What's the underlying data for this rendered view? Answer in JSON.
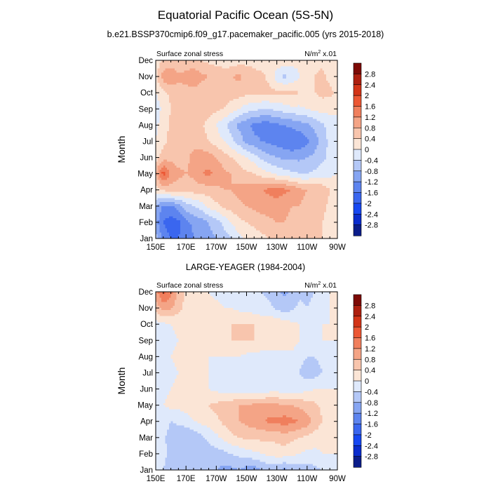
{
  "figure": {
    "title": "Equatorial Pacific Ocean (5S-5N)",
    "subtitle": "b.e21.BSSP370cmip6.f09_g17.pacemaker_pacific.005 (yrs 2015-2018)",
    "second_title": "LARGE-YEAGER (1984-2004)"
  },
  "colors": {
    "levels": [
      -2.8,
      -2.4,
      -2.0,
      -1.6,
      -1.2,
      -0.8,
      -0.4,
      0,
      0.4,
      0.8,
      1.2,
      1.6,
      2.0,
      2.4,
      2.8
    ],
    "palette": [
      "#0b1d8a",
      "#0a2ccd",
      "#1647f2",
      "#3a66ef",
      "#5d84ef",
      "#86a5f2",
      "#b4c8f7",
      "#dfe9fb",
      "#fbe5d6",
      "#f8c5ad",
      "#f4a486",
      "#f07f5d",
      "#ec5734",
      "#d33417",
      "#ad1f0f",
      "#7d0a05"
    ]
  },
  "chart_data": [
    {
      "type": "heatmap",
      "name": "top-panel",
      "left_label": "Surface zonal stress",
      "right_label_base": "N/m",
      "right_label_sup": "2",
      "right_label_tail": " x.01",
      "ylabel": "Month",
      "x_ticks": [
        "150E",
        "170E",
        "170W",
        "150W",
        "130W",
        "110W",
        "90W"
      ],
      "x_tick_values": [
        150,
        170,
        190,
        210,
        230,
        250,
        270
      ],
      "y_ticks": [
        "Jan",
        "Feb",
        "Mar",
        "Apr",
        "May",
        "Jun",
        "Jul",
        "Aug",
        "Sep",
        "Oct",
        "Nov",
        "Dec"
      ],
      "colorbar_labels": [
        "2.8",
        "2.4",
        "2",
        "1.6",
        "1.2",
        "0.8",
        "0.4",
        "0",
        "-0.4",
        "-0.8",
        "-1.2",
        "-1.6",
        "-2",
        "-2.4",
        "-2.8"
      ],
      "xlim": [
        150,
        270
      ],
      "ylim": [
        1,
        12
      ],
      "x": [
        150,
        155,
        160,
        165,
        170,
        175,
        180,
        185,
        190,
        195,
        200,
        205,
        210,
        215,
        220,
        225,
        230,
        235,
        240,
        245,
        250,
        255,
        260,
        265,
        270
      ],
      "months": [
        1,
        2,
        3,
        4,
        5,
        6,
        7,
        8,
        9,
        10,
        11,
        12
      ],
      "z": [
        [
          -0.6,
          -1.4,
          -1.6,
          -1.6,
          -1.5,
          -1.2,
          -1.0,
          -0.9,
          -0.8,
          -0.6,
          -0.4,
          -0.1,
          0.1,
          0.2,
          0.3,
          0.4,
          0.4,
          0.5,
          0.6,
          0.6,
          0.6,
          0.5,
          0.4,
          0.2,
          0.0
        ],
        [
          -1.0,
          -1.6,
          -1.8,
          -1.7,
          -1.3,
          -1.1,
          -1.0,
          -0.8,
          -0.6,
          -0.3,
          0.0,
          0.3,
          0.4,
          0.5,
          0.6,
          0.7,
          0.8,
          0.8,
          0.7,
          0.7,
          0.6,
          0.5,
          0.4,
          0.3,
          0.1
        ],
        [
          -0.8,
          -1.3,
          -1.3,
          -1.0,
          -0.6,
          -0.4,
          -0.2,
          0.1,
          0.3,
          0.5,
          0.6,
          0.7,
          0.8,
          0.9,
          1.0,
          1.0,
          1.0,
          0.9,
          0.8,
          0.8,
          0.7,
          0.6,
          0.5,
          0.3,
          0.1
        ],
        [
          0.2,
          0.5,
          0.6,
          0.6,
          0.5,
          0.6,
          0.6,
          0.6,
          0.7,
          0.8,
          0.8,
          0.9,
          1.0,
          1.1,
          1.2,
          1.3,
          1.4,
          1.3,
          1.2,
          0.9,
          0.8,
          0.8,
          0.7,
          0.4,
          0.2
        ],
        [
          0.8,
          1.8,
          1.1,
          0.9,
          0.8,
          0.9,
          1.2,
          1.3,
          1.1,
          0.9,
          0.8,
          0.6,
          0.5,
          0.4,
          0.2,
          0.1,
          -0.1,
          -0.2,
          -0.3,
          -0.4,
          -0.4,
          -0.3,
          -0.2,
          -0.1,
          0.0
        ],
        [
          0.2,
          0.6,
          0.7,
          0.6,
          0.7,
          0.9,
          1.0,
          1.0,
          0.8,
          0.6,
          0.4,
          0.2,
          0.0,
          -0.2,
          -0.5,
          -0.7,
          -0.8,
          -0.9,
          -0.9,
          -0.9,
          -0.8,
          -0.7,
          -0.5,
          -0.3,
          0.0
        ],
        [
          0.0,
          0.3,
          0.5,
          0.6,
          0.7,
          0.7,
          0.6,
          0.4,
          0.2,
          0.0,
          -0.3,
          -0.6,
          -0.9,
          -1.1,
          -1.2,
          -1.3,
          -1.4,
          -1.5,
          -1.6,
          -1.5,
          -1.3,
          -1.0,
          -0.6,
          -0.3,
          0.0
        ],
        [
          -0.1,
          0.2,
          0.5,
          0.6,
          0.6,
          0.6,
          0.5,
          0.2,
          0.0,
          -0.3,
          -0.6,
          -0.9,
          -1.1,
          -1.3,
          -1.4,
          -1.4,
          -1.3,
          -1.2,
          -1.1,
          -1.0,
          -0.9,
          -0.7,
          -0.5,
          -0.2,
          0.0
        ],
        [
          -0.2,
          0.1,
          0.4,
          0.6,
          0.7,
          0.7,
          0.7,
          0.6,
          0.5,
          0.4,
          0.2,
          0.0,
          -0.2,
          -0.3,
          -0.4,
          -0.4,
          -0.3,
          -0.2,
          -0.1,
          -0.1,
          0.0,
          0.1,
          0.2,
          0.1,
          0.0
        ],
        [
          0.0,
          0.3,
          0.5,
          0.6,
          0.6,
          0.6,
          0.6,
          0.6,
          0.6,
          0.6,
          0.6,
          0.6,
          0.5,
          0.5,
          0.5,
          0.5,
          0.5,
          0.5,
          0.5,
          0.4,
          0.4,
          0.4,
          0.5,
          0.5,
          0.3
        ],
        [
          0.3,
          1.0,
          1.2,
          0.9,
          1.0,
          1.2,
          0.9,
          0.8,
          0.8,
          0.7,
          0.8,
          0.9,
          0.6,
          0.5,
          0.5,
          0.3,
          -0.2,
          -0.5,
          -0.3,
          0.0,
          0.3,
          0.4,
          0.5,
          0.3,
          0.1
        ],
        [
          0.1,
          0.5,
          0.5,
          0.4,
          0.4,
          0.4,
          0.4,
          0.3,
          0.2,
          0.1,
          0.1,
          0.2,
          0.3,
          0.3,
          0.2,
          0.2,
          0.3,
          0.3,
          0.2,
          0.1,
          0.2,
          0.3,
          0.3,
          0.2,
          0.0
        ]
      ]
    },
    {
      "type": "heatmap",
      "name": "bottom-panel",
      "left_label": "Surface zonal stress",
      "right_label_base": "N/m",
      "right_label_sup": "2",
      "right_label_tail": " x.01",
      "ylabel": "Month",
      "x_ticks": [
        "150E",
        "170E",
        "170W",
        "150W",
        "130W",
        "110W",
        "90W"
      ],
      "x_tick_values": [
        150,
        170,
        190,
        210,
        230,
        250,
        270
      ],
      "y_ticks": [
        "Jan",
        "Feb",
        "Mar",
        "Apr",
        "May",
        "Jun",
        "Jul",
        "Aug",
        "Sep",
        "Oct",
        "Nov",
        "Dec"
      ],
      "colorbar_labels": [
        "2.8",
        "2.4",
        "2",
        "1.6",
        "1.2",
        "0.8",
        "0.4",
        "0",
        "-0.4",
        "-0.8",
        "-1.2",
        "-1.6",
        "-2",
        "-2.4",
        "-2.8"
      ],
      "xlim": [
        150,
        270
      ],
      "ylim": [
        1,
        12
      ],
      "x": [
        150,
        155,
        160,
        165,
        170,
        175,
        180,
        185,
        190,
        195,
        200,
        205,
        210,
        215,
        220,
        225,
        230,
        235,
        240,
        245,
        250,
        255,
        260,
        265,
        270
      ],
      "months": [
        1,
        2,
        3,
        4,
        5,
        6,
        7,
        8,
        9,
        10,
        11,
        12
      ],
      "z": [
        [
          -0.3,
          -0.4,
          -0.6,
          -0.6,
          -0.5,
          -0.6,
          -0.7,
          -0.6,
          -0.8,
          -0.9,
          -0.9,
          -0.8,
          -1.0,
          -1.0,
          -0.8,
          -0.7,
          -0.8,
          -0.9,
          -0.7,
          -0.6,
          -0.6,
          -0.5,
          -0.4,
          -0.2,
          0.0
        ],
        [
          -0.2,
          -0.3,
          -0.5,
          -0.7,
          -0.8,
          -0.8,
          -0.7,
          -0.6,
          -0.6,
          -0.5,
          -0.4,
          -0.3,
          -0.2,
          -0.1,
          0.0,
          0.1,
          0.2,
          0.2,
          0.1,
          0.0,
          -0.1,
          -0.1,
          0.0,
          0.0,
          0.0
        ],
        [
          -0.1,
          -0.3,
          -0.6,
          -0.8,
          -0.8,
          -0.7,
          -0.5,
          -0.3,
          -0.1,
          0.1,
          0.3,
          0.4,
          0.5,
          0.5,
          0.5,
          0.5,
          0.5,
          0.6,
          0.5,
          0.4,
          0.3,
          0.2,
          0.1,
          0.0,
          0.0
        ],
        [
          0.0,
          -0.2,
          -0.4,
          -0.3,
          -0.2,
          0.0,
          0.1,
          0.2,
          0.3,
          0.5,
          0.6,
          0.8,
          0.9,
          1.0,
          1.1,
          1.3,
          1.3,
          1.4,
          1.3,
          1.2,
          1.0,
          0.7,
          0.4,
          0.1,
          0.0
        ],
        [
          -0.1,
          0.0,
          0.1,
          0.1,
          0.2,
          0.2,
          0.3,
          0.4,
          0.5,
          0.6,
          0.7,
          0.8,
          0.8,
          0.9,
          0.9,
          0.9,
          0.9,
          0.8,
          0.8,
          0.7,
          0.6,
          0.5,
          0.3,
          0.1,
          0.0
        ],
        [
          -0.2,
          -0.1,
          0.0,
          0.1,
          0.1,
          0.1,
          0.1,
          0.0,
          -0.1,
          -0.2,
          -0.3,
          -0.3,
          -0.3,
          -0.3,
          -0.3,
          -0.2,
          -0.2,
          -0.2,
          -0.2,
          -0.2,
          -0.1,
          0.0,
          0.0,
          0.0,
          0.0
        ],
        [
          -0.3,
          -0.2,
          -0.1,
          0.0,
          0.1,
          0.1,
          0.1,
          0.0,
          -0.1,
          -0.2,
          -0.3,
          -0.3,
          -0.3,
          -0.2,
          -0.2,
          -0.3,
          -0.4,
          -0.3,
          -0.3,
          -0.4,
          -0.6,
          -0.6,
          -0.4,
          -0.2,
          0.0
        ],
        [
          -0.3,
          -0.2,
          0.0,
          0.1,
          0.1,
          0.1,
          0.1,
          0.0,
          0.0,
          0.0,
          0.0,
          0.0,
          -0.1,
          -0.1,
          -0.2,
          -0.3,
          -0.3,
          -0.2,
          -0.1,
          -0.3,
          -0.4,
          -0.4,
          -0.3,
          -0.1,
          0.0
        ],
        [
          -0.3,
          -0.2,
          -0.1,
          0.0,
          0.1,
          0.1,
          0.1,
          0.1,
          0.2,
          0.3,
          0.4,
          0.4,
          0.4,
          0.4,
          0.4,
          0.4,
          0.4,
          0.4,
          0.2,
          0.0,
          -0.1,
          -0.1,
          0.0,
          0.0,
          0.0
        ],
        [
          -0.2,
          -0.1,
          0.0,
          0.1,
          0.2,
          0.2,
          0.2,
          0.2,
          0.3,
          0.3,
          0.4,
          0.4,
          0.4,
          0.4,
          0.3,
          0.3,
          0.3,
          0.2,
          0.1,
          0.0,
          -0.1,
          -0.1,
          0.0,
          0.0,
          0.0
        ],
        [
          0.6,
          1.0,
          0.9,
          0.5,
          0.3,
          0.2,
          0.1,
          0.1,
          0.1,
          0.0,
          0.0,
          -0.1,
          -0.1,
          -0.2,
          -0.3,
          -0.3,
          -0.5,
          -0.6,
          -0.5,
          -0.3,
          -0.4,
          -0.3,
          -0.1,
          0.0,
          0.0
        ],
        [
          1.0,
          1.7,
          1.3,
          0.7,
          0.3,
          0.1,
          0.0,
          0.0,
          -0.1,
          -0.1,
          -0.2,
          -0.2,
          -0.2,
          -0.3,
          -0.4,
          -0.5,
          -0.7,
          -0.9,
          -0.7,
          -0.5,
          -0.5,
          -0.4,
          -0.1,
          0.0,
          0.0
        ]
      ]
    }
  ]
}
